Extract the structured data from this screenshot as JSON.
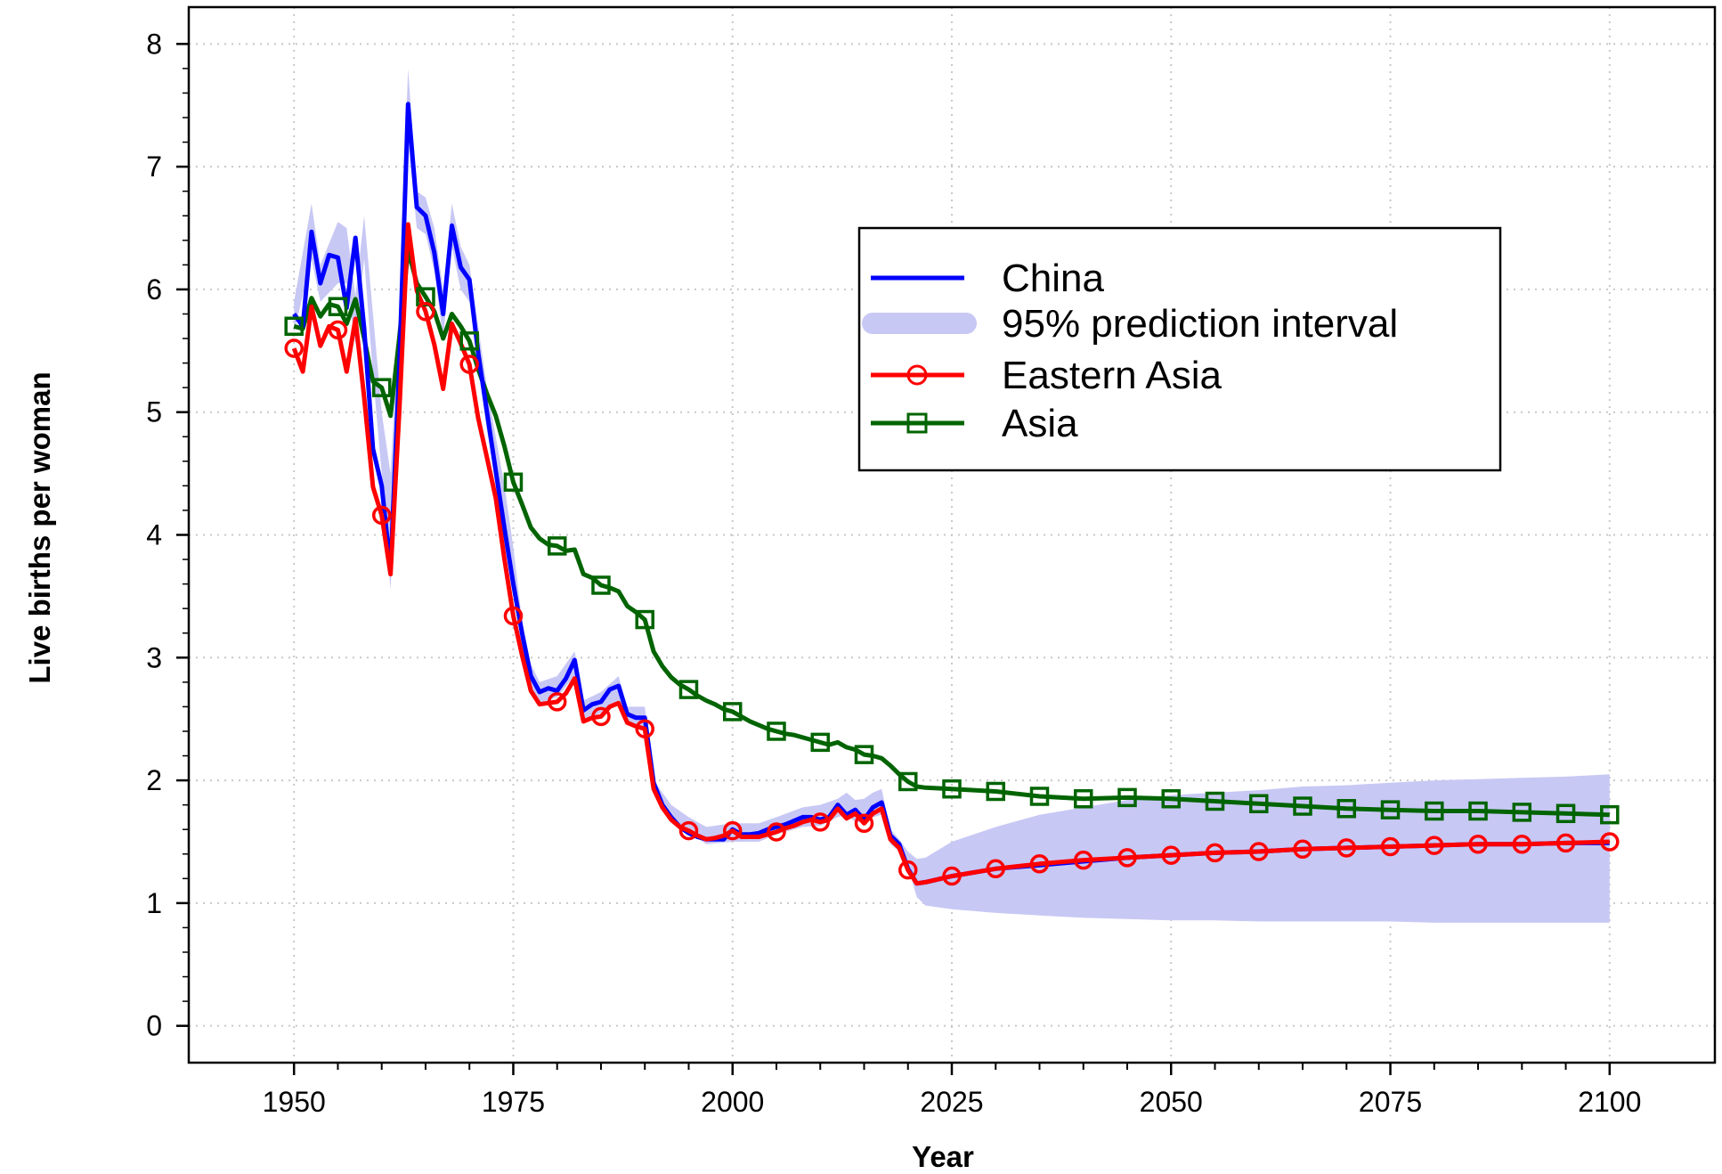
{
  "chart_data": {
    "type": "line",
    "title": "",
    "xlabel": "Year",
    "ylabel": "Live births per woman",
    "xlim": [
      1938,
      2112
    ],
    "ylim": [
      -0.3,
      8.3
    ],
    "x_ticks": [
      1950,
      1975,
      2000,
      2025,
      2050,
      2075,
      2100
    ],
    "x_tick_labels": [
      "1950",
      "1975",
      "2000",
      "2025",
      "2050",
      "2075",
      "2100"
    ],
    "y_ticks": [
      0,
      1,
      2,
      3,
      4,
      5,
      6,
      7,
      8
    ],
    "y_tick_labels": [
      "0",
      "1",
      "2",
      "3",
      "4",
      "5",
      "6",
      "7",
      "8"
    ],
    "grid": true,
    "legend_position": "top-right",
    "legend": [
      {
        "label": "China",
        "color": "#0000ff",
        "marker": "none",
        "kind": "line"
      },
      {
        "label": "95% prediction interval",
        "color": "#c8c8f5",
        "marker": "none",
        "kind": "band"
      },
      {
        "label": "Eastern Asia",
        "color": "#ff0000",
        "marker": "circle",
        "kind": "line"
      },
      {
        "label": "Asia",
        "color": "#006400",
        "marker": "square",
        "kind": "line"
      }
    ],
    "band": {
      "name": "95% prediction interval",
      "x": [
        1950,
        1952,
        1953,
        1955,
        1956,
        1957,
        1958,
        1959,
        1960,
        1961,
        1962,
        1963,
        1964,
        1965,
        1966,
        1967,
        1968,
        1969,
        1970,
        1972,
        1974,
        1975,
        1976,
        1977,
        1978,
        1980,
        1982,
        1983,
        1985,
        1987,
        1988,
        1990,
        1991,
        1993,
        1995,
        1997,
        2000,
        2003,
        2005,
        2008,
        2010,
        2012,
        2013,
        2014,
        2015,
        2016,
        2017,
        2018,
        2019,
        2020,
        2021,
        2022,
        2025,
        2030,
        2035,
        2040,
        2045,
        2050,
        2055,
        2060,
        2065,
        2070,
        2075,
        2080,
        2085,
        2090,
        2095,
        2100
      ],
      "upper": [
        5.9,
        6.7,
        6.2,
        6.55,
        6.5,
        5.95,
        6.6,
        5.8,
        5.0,
        4.5,
        5.8,
        7.8,
        6.8,
        6.75,
        6.5,
        6.0,
        6.7,
        6.35,
        6.2,
        5.2,
        4.4,
        3.9,
        3.3,
        2.95,
        2.8,
        2.85,
        3.05,
        2.65,
        2.72,
        2.85,
        2.6,
        2.6,
        2.0,
        1.8,
        1.7,
        1.62,
        1.65,
        1.65,
        1.7,
        1.78,
        1.8,
        1.85,
        1.9,
        1.84,
        1.85,
        1.9,
        1.93,
        1.6,
        1.52,
        1.42,
        1.36,
        1.37,
        1.5,
        1.62,
        1.72,
        1.78,
        1.84,
        1.88,
        1.9,
        1.92,
        1.95,
        1.96,
        1.98,
        2.0,
        2.01,
        2.02,
        2.03,
        2.05
      ],
      "lower": [
        5.65,
        6.25,
        5.9,
        6.05,
        6.05,
        5.55,
        6.25,
        5.3,
        4.5,
        3.55,
        5.3,
        7.2,
        6.5,
        6.45,
        6.15,
        5.6,
        6.35,
        6.0,
        5.9,
        4.85,
        4.1,
        3.6,
        3.05,
        2.72,
        2.62,
        2.68,
        2.85,
        2.48,
        2.55,
        2.65,
        2.45,
        2.42,
        1.9,
        1.7,
        1.58,
        1.48,
        1.5,
        1.5,
        1.56,
        1.62,
        1.63,
        1.7,
        1.72,
        1.66,
        1.66,
        1.7,
        1.72,
        1.48,
        1.42,
        1.3,
        1.05,
        0.98,
        0.95,
        0.92,
        0.9,
        0.88,
        0.87,
        0.86,
        0.86,
        0.85,
        0.85,
        0.85,
        0.85,
        0.84,
        0.84,
        0.84,
        0.84,
        0.84
      ]
    },
    "series": [
      {
        "name": "China",
        "color": "#0000ff",
        "marker": "none",
        "x": [
          1950,
          1951,
          1952,
          1953,
          1954,
          1955,
          1956,
          1957,
          1958,
          1959,
          1960,
          1961,
          1962,
          1963,
          1964,
          1965,
          1966,
          1967,
          1968,
          1969,
          1970,
          1971,
          1972,
          1973,
          1974,
          1975,
          1976,
          1977,
          1978,
          1979,
          1980,
          1981,
          1982,
          1983,
          1984,
          1985,
          1986,
          1987,
          1988,
          1989,
          1990,
          1991,
          1992,
          1993,
          1994,
          1995,
          1996,
          1997,
          1998,
          1999,
          2000,
          2001,
          2002,
          2003,
          2004,
          2005,
          2006,
          2007,
          2008,
          2009,
          2010,
          2011,
          2012,
          2013,
          2014,
          2015,
          2016,
          2017,
          2018,
          2019,
          2020,
          2021,
          2022,
          2025,
          2030,
          2035,
          2040,
          2045,
          2050,
          2055,
          2060,
          2065,
          2070,
          2075,
          2080,
          2085,
          2090,
          2095,
          2100
        ],
        "y": [
          5.8,
          5.7,
          6.47,
          6.05,
          6.28,
          6.26,
          5.85,
          6.42,
          5.68,
          4.7,
          4.4,
          3.72,
          5.35,
          7.51,
          6.67,
          6.6,
          6.3,
          5.8,
          6.52,
          6.18,
          6.08,
          5.48,
          5.0,
          4.52,
          4.05,
          3.6,
          3.2,
          2.85,
          2.72,
          2.75,
          2.73,
          2.83,
          2.98,
          2.57,
          2.62,
          2.64,
          2.74,
          2.77,
          2.54,
          2.51,
          2.51,
          1.98,
          1.8,
          1.7,
          1.62,
          1.57,
          1.54,
          1.52,
          1.52,
          1.52,
          1.6,
          1.56,
          1.56,
          1.57,
          1.6,
          1.62,
          1.64,
          1.67,
          1.7,
          1.7,
          1.68,
          1.7,
          1.8,
          1.72,
          1.76,
          1.68,
          1.78,
          1.82,
          1.55,
          1.48,
          1.28,
          1.16,
          1.17,
          1.22,
          1.28,
          1.31,
          1.34,
          1.37,
          1.39,
          1.41,
          1.42,
          1.44,
          1.45,
          1.46,
          1.47,
          1.48,
          1.48,
          1.49,
          1.49
        ]
      },
      {
        "name": "Eastern Asia",
        "color": "#ff0000",
        "marker": "circle",
        "marker_x": [
          1950,
          1955,
          1960,
          1965,
          1970,
          1975,
          1980,
          1985,
          1990,
          1995,
          2000,
          2005,
          2010,
          2015,
          2020,
          2025,
          2030,
          2035,
          2040,
          2045,
          2050,
          2055,
          2060,
          2065,
          2070,
          2075,
          2080,
          2085,
          2090,
          2095,
          2100
        ],
        "x": [
          1950,
          1951,
          1952,
          1953,
          1954,
          1955,
          1956,
          1957,
          1958,
          1959,
          1960,
          1961,
          1962,
          1963,
          1964,
          1965,
          1966,
          1967,
          1968,
          1969,
          1970,
          1971,
          1972,
          1973,
          1974,
          1975,
          1976,
          1977,
          1978,
          1979,
          1980,
          1981,
          1982,
          1983,
          1984,
          1985,
          1986,
          1987,
          1988,
          1989,
          1990,
          1991,
          1992,
          1993,
          1994,
          1995,
          1996,
          1997,
          1998,
          1999,
          2000,
          2001,
          2002,
          2003,
          2004,
          2005,
          2006,
          2007,
          2008,
          2009,
          2010,
          2011,
          2012,
          2013,
          2014,
          2015,
          2016,
          2017,
          2018,
          2019,
          2020,
          2021,
          2022,
          2025,
          2030,
          2035,
          2040,
          2045,
          2050,
          2055,
          2060,
          2065,
          2070,
          2075,
          2080,
          2085,
          2090,
          2095,
          2100
        ],
        "y": [
          5.52,
          5.33,
          5.86,
          5.54,
          5.7,
          5.67,
          5.33,
          5.76,
          5.12,
          4.39,
          4.16,
          3.68,
          5.0,
          6.53,
          5.99,
          5.82,
          5.55,
          5.19,
          5.72,
          5.56,
          5.39,
          4.95,
          4.63,
          4.3,
          3.8,
          3.34,
          3.02,
          2.73,
          2.62,
          2.63,
          2.64,
          2.71,
          2.83,
          2.48,
          2.51,
          2.52,
          2.6,
          2.63,
          2.47,
          2.44,
          2.42,
          1.93,
          1.78,
          1.68,
          1.62,
          1.59,
          1.55,
          1.52,
          1.53,
          1.55,
          1.59,
          1.54,
          1.54,
          1.54,
          1.56,
          1.58,
          1.61,
          1.63,
          1.66,
          1.68,
          1.66,
          1.68,
          1.77,
          1.69,
          1.73,
          1.65,
          1.73,
          1.77,
          1.52,
          1.45,
          1.27,
          1.16,
          1.17,
          1.22,
          1.28,
          1.32,
          1.35,
          1.37,
          1.39,
          1.41,
          1.42,
          1.44,
          1.45,
          1.46,
          1.47,
          1.48,
          1.48,
          1.49,
          1.5
        ]
      },
      {
        "name": "Asia",
        "color": "#006400",
        "marker": "square",
        "marker_x": [
          1950,
          1955,
          1960,
          1965,
          1970,
          1975,
          1980,
          1985,
          1990,
          1995,
          2000,
          2005,
          2010,
          2015,
          2020,
          2025,
          2030,
          2035,
          2040,
          2045,
          2050,
          2055,
          2060,
          2065,
          2070,
          2075,
          2080,
          2085,
          2090,
          2095,
          2100
        ],
        "x": [
          1950,
          1951,
          1952,
          1953,
          1954,
          1955,
          1956,
          1957,
          1958,
          1959,
          1960,
          1961,
          1962,
          1963,
          1964,
          1965,
          1966,
          1967,
          1968,
          1969,
          1970,
          1971,
          1972,
          1973,
          1974,
          1975,
          1976,
          1977,
          1978,
          1979,
          1980,
          1981,
          1982,
          1983,
          1984,
          1985,
          1986,
          1987,
          1988,
          1989,
          1990,
          1991,
          1992,
          1993,
          1994,
          1995,
          1996,
          1997,
          1998,
          1999,
          2000,
          2001,
          2002,
          2003,
          2004,
          2005,
          2006,
          2007,
          2008,
          2009,
          2010,
          2011,
          2012,
          2013,
          2014,
          2015,
          2016,
          2017,
          2018,
          2019,
          2020,
          2021,
          2022,
          2025,
          2030,
          2035,
          2040,
          2045,
          2050,
          2055,
          2060,
          2065,
          2070,
          2075,
          2080,
          2085,
          2090,
          2095,
          2100
        ],
        "y": [
          5.7,
          5.68,
          5.93,
          5.78,
          5.88,
          5.86,
          5.72,
          5.92,
          5.6,
          5.25,
          5.2,
          4.97,
          5.6,
          6.32,
          6.05,
          5.94,
          5.82,
          5.6,
          5.8,
          5.7,
          5.58,
          5.35,
          5.15,
          4.97,
          4.72,
          4.43,
          4.25,
          4.06,
          3.97,
          3.92,
          3.91,
          3.87,
          3.88,
          3.68,
          3.65,
          3.59,
          3.57,
          3.54,
          3.42,
          3.37,
          3.31,
          3.05,
          2.93,
          2.84,
          2.78,
          2.74,
          2.69,
          2.65,
          2.62,
          2.58,
          2.56,
          2.52,
          2.48,
          2.45,
          2.42,
          2.4,
          2.38,
          2.37,
          2.35,
          2.33,
          2.31,
          2.29,
          2.31,
          2.27,
          2.25,
          2.21,
          2.2,
          2.18,
          2.12,
          2.05,
          1.99,
          1.95,
          1.94,
          1.93,
          1.91,
          1.87,
          1.85,
          1.86,
          1.85,
          1.83,
          1.81,
          1.79,
          1.77,
          1.76,
          1.75,
          1.75,
          1.74,
          1.73,
          1.72
        ]
      }
    ]
  }
}
